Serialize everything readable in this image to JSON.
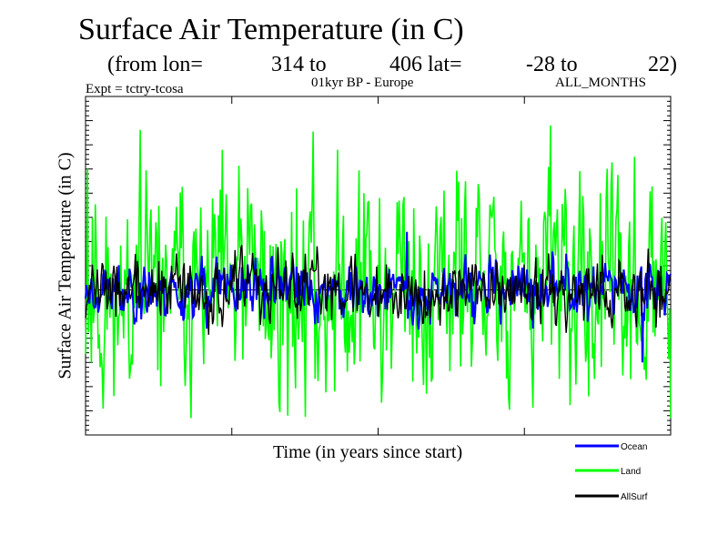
{
  "header": {
    "title": "Surface Air Temperature (in C)",
    "subtitle_from": "(from lon=",
    "lon_start": "314 to",
    "lon_end": "406 lat=",
    "lat_start": "-28 to",
    "lat_end": "22)",
    "expt": "Expt = tctry-tcosa",
    "period": "01kyr BP - Europe",
    "months": "ALL_MONTHS"
  },
  "colors": {
    "ocean": "#0000ff",
    "land": "#00ff00",
    "allsurf": "#000000"
  },
  "chart_data": {
    "type": "line",
    "title": "Surface Air Temperature (in C)",
    "xlabel": "Time (in years since start)",
    "ylabel": "Surface Air Temperature (in C)",
    "xlim": [
      0,
      100
    ],
    "ylim": [
      -3,
      4
    ],
    "y_tick_values": [
      -3,
      -2.5,
      -2,
      -1.5,
      -1,
      -0.5,
      0,
      0.5,
      1,
      1.5,
      2,
      2.5,
      3,
      3.5,
      4
    ],
    "x_tick_values": [
      0,
      25,
      50,
      75,
      100
    ],
    "tick_labels_shown": false,
    "legend": {
      "position": "bottom-right",
      "entries": [
        "Ocean",
        "Land",
        "AllSurf"
      ]
    },
    "series": [
      {
        "name": "Land",
        "color": "#00ff00",
        "baseline": 0,
        "spread": 1.05,
        "seed": 11,
        "clip": [
          -2.65,
          3.45
        ],
        "spikes": [
          [
            0.3,
            2.5
          ],
          [
            2.5,
            -1.6
          ],
          [
            36,
            2.1
          ],
          [
            47.6,
            2.0
          ],
          [
            50.3,
            1.9
          ],
          [
            79.5,
            3.4
          ],
          [
            88,
            2.0
          ],
          [
            34.5,
            -2.6
          ],
          [
            42.6,
            -2.1
          ],
          [
            56,
            -1.9
          ],
          [
            85.9,
            -2.2
          ]
        ]
      },
      {
        "name": "Ocean",
        "color": "#0000ff",
        "baseline": 0,
        "spread": 0.28,
        "seed": 23,
        "clip": [
          -1.6,
          1.3
        ],
        "spikes": [
          [
            55,
            1.2
          ],
          [
            95.1,
            -1.5
          ],
          [
            30.5,
            -0.6
          ],
          [
            76.5,
            -0.8
          ]
        ]
      },
      {
        "name": "AllSurf",
        "color": "#000000",
        "baseline": 0,
        "spread": 0.32,
        "seed": 37,
        "clip": [
          -1.5,
          1.2
        ],
        "spikes": [
          [
            27.7,
            0.5
          ],
          [
            58,
            0.4
          ],
          [
            54,
            -0.5
          ]
        ]
      }
    ]
  }
}
